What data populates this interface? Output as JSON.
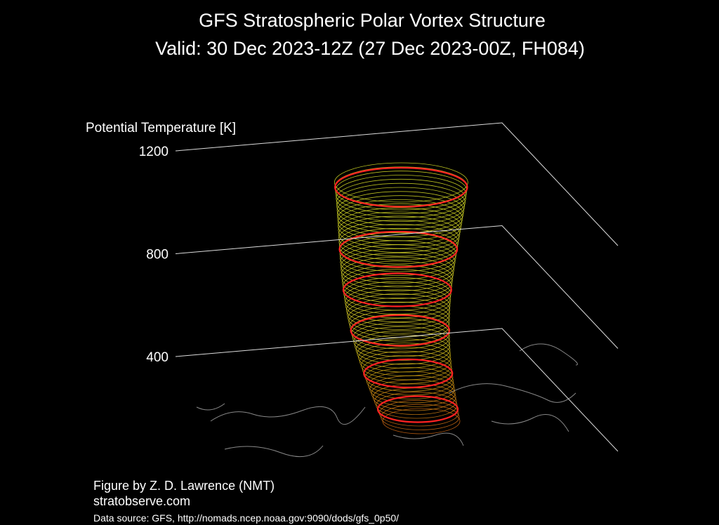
{
  "chart_data": {
    "type": "surface3d",
    "title": "GFS Stratospheric Polar Vortex Structure",
    "subtitle": "Valid: 30 Dec 2023-12Z  (27 Dec 2023-00Z, FH084)",
    "z_label": "Potential Temperature [K]",
    "zlim": [
      400,
      1200
    ],
    "zticks": [
      400,
      800,
      1200
    ],
    "annotations": [
      "Figure by Z. D. Lawrence (NMT)",
      "stratobserve.com",
      "Data source: GFS, http://nomads.ncep.noaa.gov:9090/dods/gfs_0p50/"
    ]
  }
}
